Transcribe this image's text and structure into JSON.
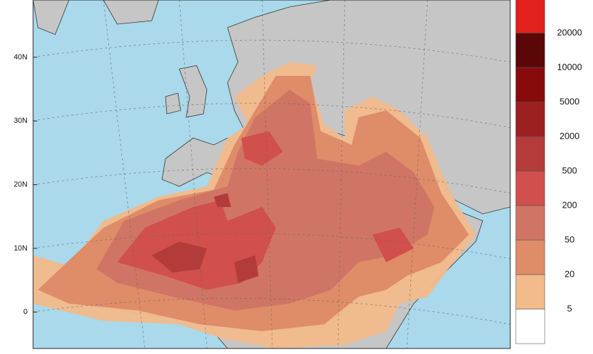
{
  "map": {
    "latitude_labels": [
      "40N",
      "30N",
      "20N",
      "10N",
      "0"
    ],
    "colorbar": {
      "levels": [
        20000,
        10000,
        5000,
        2000,
        500,
        200,
        50,
        20,
        5
      ],
      "colors": [
        "#e3211c",
        "#5c0707",
        "#880b0b",
        "#9d2020",
        "#b33c3a",
        "#d14f4c",
        "#d07565",
        "#df8c68",
        "#f2bb8b",
        "#ffffff"
      ]
    }
  }
}
